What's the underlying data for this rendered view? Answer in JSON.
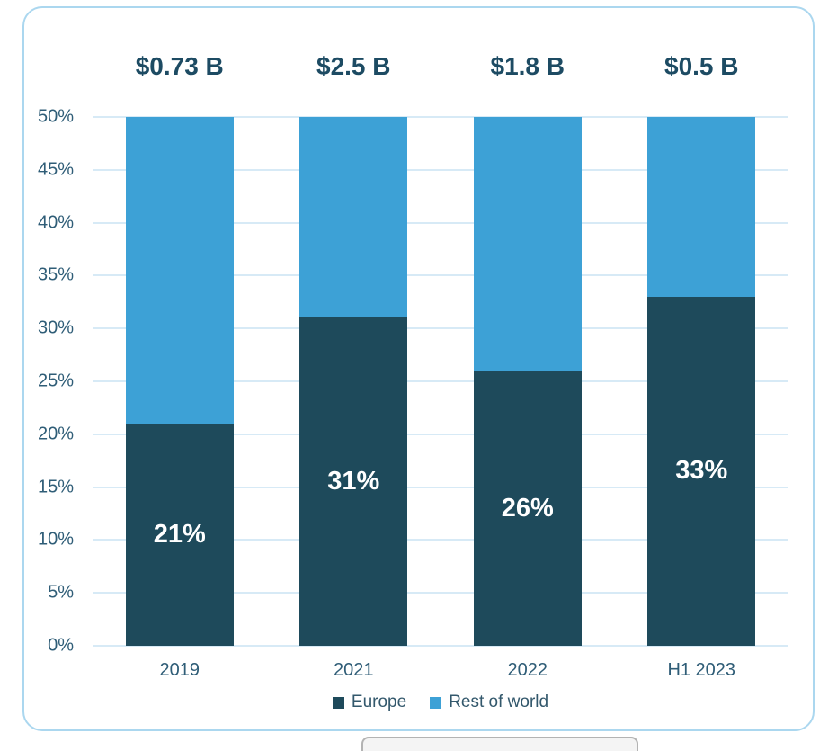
{
  "card": {
    "background": "#FFFFFF",
    "border_color": "#ABD7EF"
  },
  "chart_data": {
    "type": "bar",
    "stacked": true,
    "title": "",
    "categories": [
      "2019",
      "2021",
      "2022",
      "H1 2023"
    ],
    "bar_totals": [
      "$0.73 B",
      "$2.5 B",
      "$1.8 B",
      "$0.5 B"
    ],
    "series": [
      {
        "name": "Europe",
        "color": "#1E4A5B",
        "values": [
          21,
          31,
          26,
          33
        ],
        "data_labels": [
          "21%",
          "31%",
          "26%",
          "33%"
        ]
      },
      {
        "name": "Rest of world",
        "color": "#3DA1D6",
        "values": [
          29,
          19,
          24,
          17
        ],
        "data_labels": [
          "",
          "",
          "",
          ""
        ]
      }
    ],
    "ylim": [
      0,
      50
    ],
    "ytick_step": 5,
    "ytick_labels": [
      "0%",
      "5%",
      "10%",
      "15%",
      "20%",
      "25%",
      "30%",
      "35%",
      "40%",
      "45%",
      "50%"
    ],
    "grid": true,
    "gridline_color": "#D7EAF6",
    "axis_text_color": "#2F5D77",
    "total_label_color": "#1D4B63",
    "bar_label_color": "#FFFFFF",
    "legend_position": "bottom"
  }
}
